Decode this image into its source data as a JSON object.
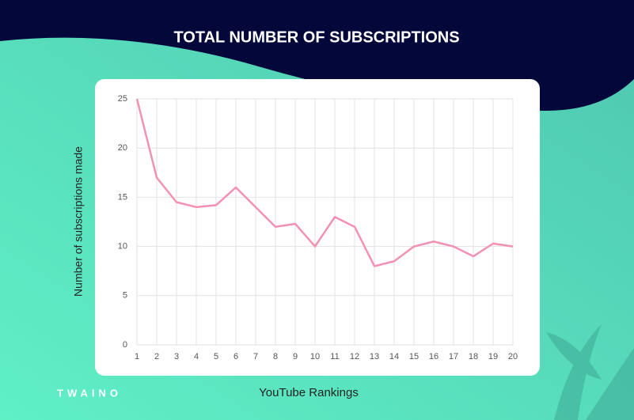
{
  "brand": "TWAINO",
  "chart_data": {
    "type": "line",
    "title": "TOTAL NUMBER OF SUBSCRIPTIONS",
    "x_label": "YouTube Rankings",
    "y_label": "Number of subscriptions made",
    "x": [
      1,
      2,
      3,
      4,
      5,
      6,
      7,
      8,
      9,
      10,
      11,
      12,
      13,
      14,
      15,
      16,
      17,
      18,
      19,
      20
    ],
    "series": [
      {
        "name": "Subscriptions",
        "color": "#f291b4",
        "values": [
          25,
          17,
          14.5,
          14,
          14.2,
          16,
          14,
          12,
          12.3,
          10,
          13,
          12,
          8,
          8.5,
          10,
          10.5,
          10,
          9,
          10.3,
          10
        ]
      }
    ],
    "xlim": [
      1,
      20
    ],
    "xticks": [
      1,
      2,
      3,
      4,
      5,
      6,
      7,
      8,
      9,
      10,
      11,
      12,
      13,
      14,
      15,
      16,
      17,
      18,
      19,
      20
    ],
    "ylim": [
      0,
      25
    ],
    "yticks": [
      0,
      5,
      10,
      15,
      20,
      25
    ],
    "grid": true
  }
}
